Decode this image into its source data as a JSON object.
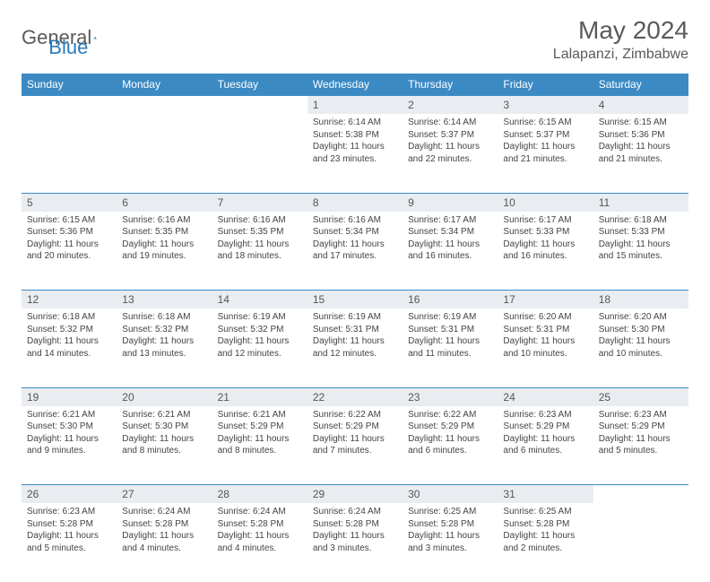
{
  "brand": {
    "part1": "General",
    "part2": "Blue"
  },
  "title": "May 2024",
  "location": "Lalapanzi, Zimbabwe",
  "colors": {
    "header_bg": "#3b8ac4",
    "header_text": "#ffffff",
    "daynum_bg": "#e9edf1",
    "border": "#3b8ac4",
    "text": "#444444",
    "title_text": "#5a5a5a"
  },
  "daysOfWeek": [
    "Sunday",
    "Monday",
    "Tuesday",
    "Wednesday",
    "Thursday",
    "Friday",
    "Saturday"
  ],
  "weeks": [
    [
      null,
      null,
      null,
      {
        "n": "1",
        "sr": "6:14 AM",
        "ss": "5:38 PM",
        "dl": "11 hours and 23 minutes."
      },
      {
        "n": "2",
        "sr": "6:14 AM",
        "ss": "5:37 PM",
        "dl": "11 hours and 22 minutes."
      },
      {
        "n": "3",
        "sr": "6:15 AM",
        "ss": "5:37 PM",
        "dl": "11 hours and 21 minutes."
      },
      {
        "n": "4",
        "sr": "6:15 AM",
        "ss": "5:36 PM",
        "dl": "11 hours and 21 minutes."
      }
    ],
    [
      {
        "n": "5",
        "sr": "6:15 AM",
        "ss": "5:36 PM",
        "dl": "11 hours and 20 minutes."
      },
      {
        "n": "6",
        "sr": "6:16 AM",
        "ss": "5:35 PM",
        "dl": "11 hours and 19 minutes."
      },
      {
        "n": "7",
        "sr": "6:16 AM",
        "ss": "5:35 PM",
        "dl": "11 hours and 18 minutes."
      },
      {
        "n": "8",
        "sr": "6:16 AM",
        "ss": "5:34 PM",
        "dl": "11 hours and 17 minutes."
      },
      {
        "n": "9",
        "sr": "6:17 AM",
        "ss": "5:34 PM",
        "dl": "11 hours and 16 minutes."
      },
      {
        "n": "10",
        "sr": "6:17 AM",
        "ss": "5:33 PM",
        "dl": "11 hours and 16 minutes."
      },
      {
        "n": "11",
        "sr": "6:18 AM",
        "ss": "5:33 PM",
        "dl": "11 hours and 15 minutes."
      }
    ],
    [
      {
        "n": "12",
        "sr": "6:18 AM",
        "ss": "5:32 PM",
        "dl": "11 hours and 14 minutes."
      },
      {
        "n": "13",
        "sr": "6:18 AM",
        "ss": "5:32 PM",
        "dl": "11 hours and 13 minutes."
      },
      {
        "n": "14",
        "sr": "6:19 AM",
        "ss": "5:32 PM",
        "dl": "11 hours and 12 minutes."
      },
      {
        "n": "15",
        "sr": "6:19 AM",
        "ss": "5:31 PM",
        "dl": "11 hours and 12 minutes."
      },
      {
        "n": "16",
        "sr": "6:19 AM",
        "ss": "5:31 PM",
        "dl": "11 hours and 11 minutes."
      },
      {
        "n": "17",
        "sr": "6:20 AM",
        "ss": "5:31 PM",
        "dl": "11 hours and 10 minutes."
      },
      {
        "n": "18",
        "sr": "6:20 AM",
        "ss": "5:30 PM",
        "dl": "11 hours and 10 minutes."
      }
    ],
    [
      {
        "n": "19",
        "sr": "6:21 AM",
        "ss": "5:30 PM",
        "dl": "11 hours and 9 minutes."
      },
      {
        "n": "20",
        "sr": "6:21 AM",
        "ss": "5:30 PM",
        "dl": "11 hours and 8 minutes."
      },
      {
        "n": "21",
        "sr": "6:21 AM",
        "ss": "5:29 PM",
        "dl": "11 hours and 8 minutes."
      },
      {
        "n": "22",
        "sr": "6:22 AM",
        "ss": "5:29 PM",
        "dl": "11 hours and 7 minutes."
      },
      {
        "n": "23",
        "sr": "6:22 AM",
        "ss": "5:29 PM",
        "dl": "11 hours and 6 minutes."
      },
      {
        "n": "24",
        "sr": "6:23 AM",
        "ss": "5:29 PM",
        "dl": "11 hours and 6 minutes."
      },
      {
        "n": "25",
        "sr": "6:23 AM",
        "ss": "5:29 PM",
        "dl": "11 hours and 5 minutes."
      }
    ],
    [
      {
        "n": "26",
        "sr": "6:23 AM",
        "ss": "5:28 PM",
        "dl": "11 hours and 5 minutes."
      },
      {
        "n": "27",
        "sr": "6:24 AM",
        "ss": "5:28 PM",
        "dl": "11 hours and 4 minutes."
      },
      {
        "n": "28",
        "sr": "6:24 AM",
        "ss": "5:28 PM",
        "dl": "11 hours and 4 minutes."
      },
      {
        "n": "29",
        "sr": "6:24 AM",
        "ss": "5:28 PM",
        "dl": "11 hours and 3 minutes."
      },
      {
        "n": "30",
        "sr": "6:25 AM",
        "ss": "5:28 PM",
        "dl": "11 hours and 3 minutes."
      },
      {
        "n": "31",
        "sr": "6:25 AM",
        "ss": "5:28 PM",
        "dl": "11 hours and 2 minutes."
      },
      null
    ]
  ],
  "labels": {
    "sunrise": "Sunrise:",
    "sunset": "Sunset:",
    "daylight": "Daylight:"
  }
}
